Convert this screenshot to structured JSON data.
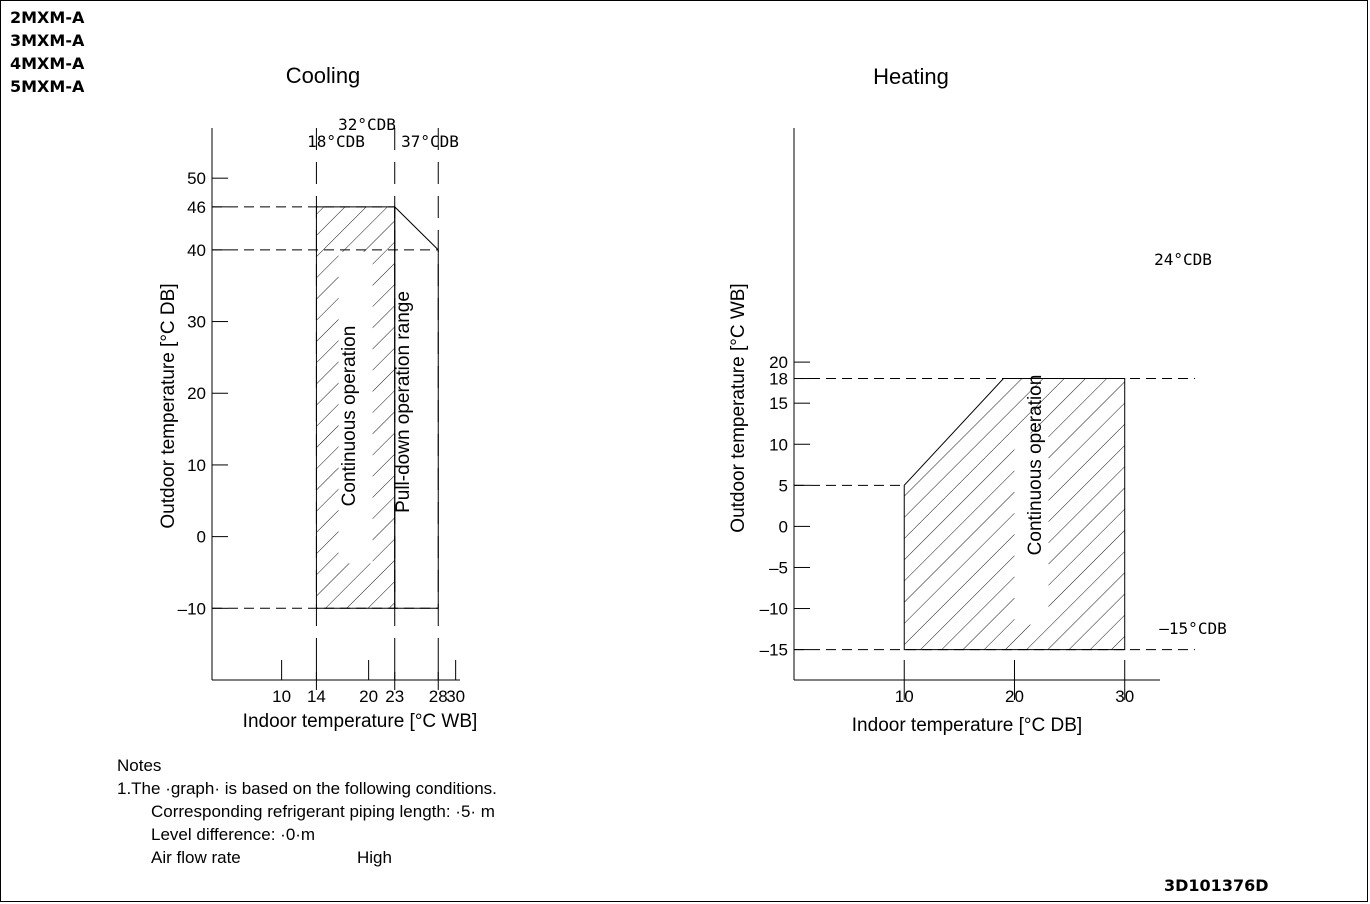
{
  "models": [
    "2MXM-A",
    "3MXM-A",
    "4MXM-A",
    "5MXM-A"
  ],
  "document_id": "3D101376D",
  "notes": {
    "heading": "Notes",
    "line1": "1.The ·graph· is based on the following conditions.",
    "line2": "Corresponding refrigerant piping length: ·5· m",
    "line3": "Level difference: ·0·m",
    "air_flow_label": "Air flow rate",
    "air_flow_value": "High"
  },
  "chart_data": [
    {
      "type": "area",
      "title": "Cooling",
      "xlabel": "Indoor temperature [°C WB]",
      "ylabel": "Outdoor temperature [°C DB]",
      "xticks": [
        10,
        14,
        20,
        23,
        28,
        30
      ],
      "xtick_labels": [
        "10",
        "14",
        "20",
        "23",
        "28",
        "30"
      ],
      "yticks": [
        -10,
        0,
        10,
        20,
        30,
        40,
        46,
        50
      ],
      "ytick_labels": [
        "–10",
        "0",
        "10",
        "20",
        "30",
        "40",
        "46",
        "50"
      ],
      "xlim": [
        2,
        30.5
      ],
      "ylim": [
        -20,
        57
      ],
      "grid": false,
      "regions": [
        {
          "label": "Continuous operation",
          "hatched": true,
          "polygon": [
            [
              14,
              -10
            ],
            [
              14,
              46
            ],
            [
              23,
              46
            ],
            [
              23,
              -10
            ]
          ]
        },
        {
          "label": "Pull-down operation range",
          "hatched": false,
          "polygon": [
            [
              23,
              -10
            ],
            [
              23,
              46
            ],
            [
              28,
              40
            ],
            [
              28,
              -10
            ]
          ]
        }
      ],
      "reference_lines": [
        {
          "axis": "x",
          "value": 14,
          "label": "18°CDB"
        },
        {
          "axis": "x",
          "value": 23,
          "label": "32°CDB"
        },
        {
          "axis": "x",
          "value": 28,
          "label": "37°CDB"
        },
        {
          "axis": "y",
          "value": 46
        },
        {
          "axis": "y",
          "value": 40
        },
        {
          "axis": "y",
          "value": -10
        }
      ]
    },
    {
      "type": "area",
      "title": "Heating",
      "xlabel": "Indoor temperature [°C DB]",
      "ylabel": "Outdoor temperature [°C WB]",
      "xticks": [
        10,
        20,
        30
      ],
      "xtick_labels": [
        "10",
        "20",
        "30"
      ],
      "yticks": [
        -15,
        -10,
        -5,
        0,
        5,
        10,
        15,
        18,
        20
      ],
      "ytick_labels": [
        "–15",
        "–10",
        "–5",
        "0",
        "5",
        "10",
        "15",
        "18",
        "20"
      ],
      "xlim": [
        0,
        33.2
      ],
      "ylim": [
        -18.7,
        48.5
      ],
      "grid": false,
      "regions": [
        {
          "label": "Continuous operation",
          "hatched": true,
          "polygon": [
            [
              10,
              -15
            ],
            [
              10,
              5
            ],
            [
              19,
              18
            ],
            [
              30,
              18
            ],
            [
              30,
              -15
            ]
          ]
        }
      ],
      "reference_lines": [
        {
          "axis": "y",
          "value": 18,
          "label": "24°CDB"
        },
        {
          "axis": "y",
          "value": 5
        },
        {
          "axis": "y",
          "value": -15,
          "label": "–15°CDB"
        }
      ]
    }
  ]
}
